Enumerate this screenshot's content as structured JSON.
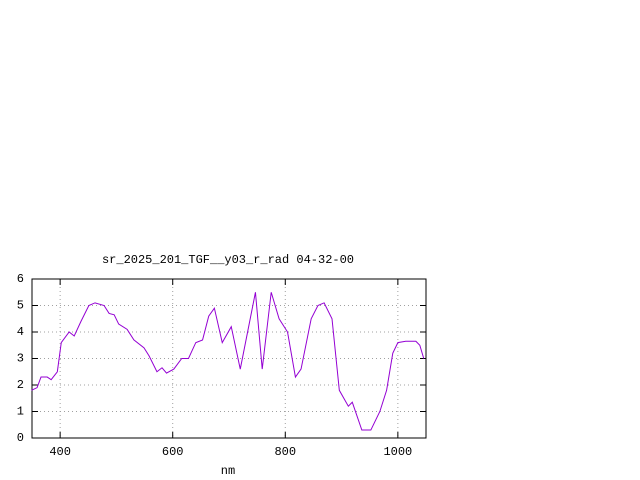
{
  "chart_data": {
    "type": "line",
    "title": "sr_2025_201_TGF__y03_r_rad 04-32-00",
    "x_label": "nm",
    "x": [
      349,
      359,
      366,
      377,
      384,
      395,
      402,
      416,
      425,
      437,
      451,
      462,
      478,
      487,
      496,
      504,
      519,
      531,
      549,
      558,
      572,
      581,
      589,
      602,
      616,
      628,
      641,
      653,
      664,
      674,
      688,
      704,
      720,
      747,
      759,
      775,
      789,
      804,
      818,
      828,
      846,
      858,
      869,
      883,
      896,
      912,
      919,
      936,
      952,
      968,
      980,
      991,
      1000,
      1014,
      1032,
      1039,
      1046
    ],
    "series": [
      {
        "color": "#9400d3",
        "values": [
          1.8,
          1.9,
          2.3,
          2.3,
          2.2,
          2.5,
          3.6,
          4.0,
          3.85,
          4.4,
          5.0,
          5.1,
          5.0,
          4.7,
          4.65,
          4.3,
          4.1,
          3.7,
          3.4,
          3.1,
          2.5,
          2.65,
          2.45,
          2.6,
          3.0,
          3.0,
          3.6,
          3.7,
          4.6,
          4.9,
          3.6,
          4.2,
          2.6,
          5.5,
          2.6,
          5.5,
          4.5,
          4.0,
          2.3,
          2.6,
          4.5,
          5.0,
          5.1,
          4.5,
          1.8,
          1.2,
          1.35,
          0.3,
          0.3,
          1.0,
          1.8,
          3.2,
          3.6,
          3.65,
          3.65,
          3.5,
          3.0
        ]
      }
    ],
    "xlim": [
      350,
      1050
    ],
    "xticks": [
      400,
      600,
      800,
      1000
    ],
    "ylim": [
      0,
      6
    ],
    "yticks": [
      0,
      1,
      2,
      3,
      4,
      5,
      6
    ],
    "grid": true
  }
}
